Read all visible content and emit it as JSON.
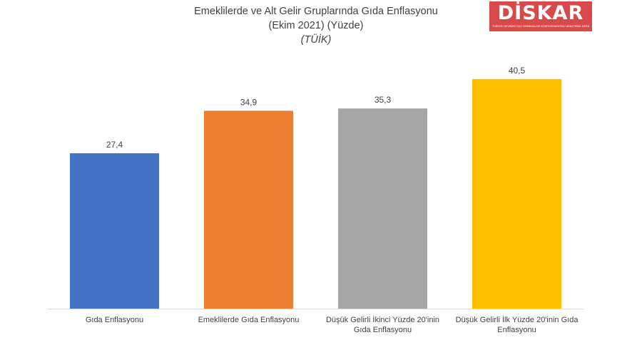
{
  "header": {
    "title_line1": "Emeklilerde ve Alt Gelir Gruplarında Gıda Enflasyonu",
    "title_line2": "(Ekim 2021) (Yüzde)",
    "source": "(TÜİK)"
  },
  "logo": {
    "text": "DİSKAR",
    "tagline": "TÜRKİYE DEVRİMCİ İŞÇİ SENDİKALARI KONFEDERASYONU ARAŞTIRMA MERKEZİ",
    "color": "#d8494a"
  },
  "chart_data": {
    "type": "bar",
    "title": "Emeklilerde ve Alt Gelir Gruplarında Gıda Enflasyonu (Ekim 2021) (Yüzde)",
    "subtitle": "(TÜİK)",
    "xlabel": "",
    "ylabel": "",
    "categories": [
      "Gıda Enflasyonu",
      "Emeklilerde Gıda Enflasyonu",
      "Düşük Gelirli İkinci Yüzde 20'inin Gıda Enflasyonu",
      "Düşük Gelirli İlk Yüzde 20'inin Gıda Enflasyonu"
    ],
    "values": [
      27.4,
      34.9,
      35.3,
      40.5
    ],
    "value_labels": [
      "27,4",
      "34,9",
      "35,3",
      "40,5"
    ],
    "colors": [
      "#4472c4",
      "#ed7d31",
      "#a5a5a5",
      "#ffc000"
    ],
    "ylim": [
      0,
      45
    ],
    "grid": false,
    "legend": "none"
  }
}
